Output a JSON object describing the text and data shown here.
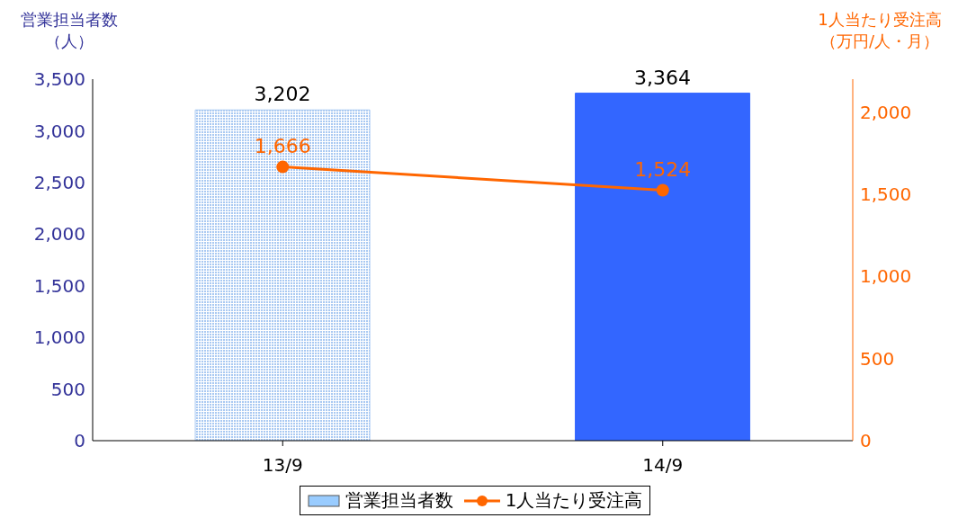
{
  "chart_data": {
    "type": "bar",
    "categories": [
      "13/9",
      "14/9"
    ],
    "series": [
      {
        "name": "営業担当者数",
        "colors": [
          "#a9c9f2",
          "#3366ff"
        ],
        "color": "#99ccff",
        "values": [
          3202,
          3364
        ],
        "value_labels": [
          "3,202",
          "3,364"
        ]
      },
      {
        "name": "1人当たり受注高",
        "type": "line",
        "axis": "y2",
        "color": "#ff6600",
        "values": [
          1666,
          1524
        ],
        "value_labels": [
          "1,666",
          "1,524"
        ]
      }
    ],
    "ylabel": "営業担当者数（人）",
    "y2label": "1人当たり受注高（万円/人・月）",
    "ylim": [
      0,
      3500
    ],
    "yticks": [
      0,
      500,
      {
        "value": 1000,
        "label": "1,000"
      },
      {
        "value": 1500,
        "label": "1,500"
      },
      {
        "value": 2000,
        "label": "2,000"
      },
      {
        "value": 2500,
        "label": "2,500"
      },
      {
        "value": 3000,
        "label": "3,000"
      },
      {
        "value": 3500,
        "label": "3,500"
      }
    ],
    "y2lim": [
      0,
      2200
    ],
    "y2ticks": [
      0,
      500,
      {
        "value": 1000,
        "label": "1,000"
      },
      {
        "value": 1500,
        "label": "1,500"
      },
      {
        "value": 2000,
        "label": "2,000"
      }
    ],
    "grid": false,
    "legend": "bottom",
    "marker": "circle",
    "line_style": "solid"
  }
}
